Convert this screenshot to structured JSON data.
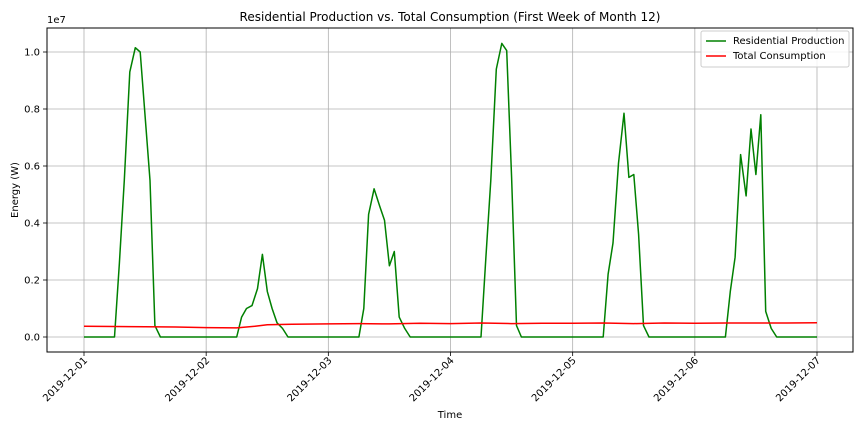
{
  "chart_data": {
    "type": "line",
    "title": "Residential Production vs. Total Consumption (First Week of Month 12)",
    "xlabel": "Time",
    "ylabel": "Energy (W)",
    "y_scale_label": "1e7",
    "xlim": [
      0,
      6
    ],
    "ylim": [
      -0.5,
      10.8
    ],
    "grid": true,
    "legend_position": "top-right",
    "x_ticks": [
      {
        "pos": 0,
        "label": "2019-12-01"
      },
      {
        "pos": 1,
        "label": "2019-12-02"
      },
      {
        "pos": 2,
        "label": "2019-12-03"
      },
      {
        "pos": 3,
        "label": "2019-12-04"
      },
      {
        "pos": 4,
        "label": "2019-12-05"
      },
      {
        "pos": 5,
        "label": "2019-12-06"
      },
      {
        "pos": 6,
        "label": "2019-12-07"
      }
    ],
    "y_ticks": [
      {
        "pos": 0,
        "label": "0.0"
      },
      {
        "pos": 2,
        "label": "0.2"
      },
      {
        "pos": 4,
        "label": "0.4"
      },
      {
        "pos": 6,
        "label": "0.6"
      },
      {
        "pos": 8,
        "label": "0.8"
      },
      {
        "pos": 10,
        "label": "1.0"
      }
    ],
    "series": [
      {
        "name": "Residential Production",
        "color": "#008000",
        "x": [
          0.0,
          0.25,
          0.29,
          0.33,
          0.375,
          0.42,
          0.46,
          0.54,
          0.58,
          0.625,
          0.67,
          1.25,
          1.29,
          1.33,
          1.375,
          1.42,
          1.46,
          1.5,
          1.54,
          1.58,
          1.625,
          1.67,
          2.25,
          2.29,
          2.33,
          2.375,
          2.42,
          2.46,
          2.5,
          2.54,
          2.58,
          2.625,
          2.67,
          3.25,
          3.29,
          3.33,
          3.375,
          3.42,
          3.46,
          3.5,
          3.54,
          3.58,
          3.625,
          3.67,
          4.25,
          4.29,
          4.33,
          4.375,
          4.42,
          4.46,
          4.5,
          4.54,
          4.58,
          4.625,
          4.67,
          5.25,
          5.29,
          5.33,
          5.375,
          5.42,
          5.46,
          5.5,
          5.54,
          5.58,
          5.625,
          5.67,
          6.0
        ],
        "values": [
          0.0,
          0.0,
          2.6,
          5.5,
          9.3,
          10.15,
          10.0,
          5.5,
          0.4,
          0.0,
          0.0,
          0.0,
          0.7,
          1.0,
          1.1,
          1.7,
          2.9,
          1.6,
          1.0,
          0.5,
          0.3,
          0.0,
          0.0,
          1.0,
          4.3,
          5.2,
          4.6,
          4.1,
          2.5,
          3.0,
          0.7,
          0.3,
          0.0,
          0.0,
          2.8,
          5.5,
          9.4,
          10.3,
          10.05,
          5.6,
          0.4,
          0.0,
          0.0,
          0.0,
          0.0,
          2.2,
          3.3,
          6.1,
          7.85,
          5.6,
          5.7,
          3.6,
          0.4,
          0.0,
          0.0,
          0.0,
          1.6,
          2.8,
          6.4,
          4.95,
          7.3,
          5.7,
          7.8,
          0.9,
          0.3,
          0.0,
          0.0
        ]
      },
      {
        "name": "Total Consumption",
        "color": "#ff0000",
        "x": [
          0.0,
          0.25,
          0.5,
          0.75,
          1.0,
          1.25,
          1.4,
          1.5,
          1.7,
          2.0,
          2.25,
          2.5,
          2.75,
          3.0,
          3.25,
          3.5,
          3.75,
          4.0,
          4.25,
          4.5,
          4.75,
          5.0,
          5.25,
          5.5,
          5.75,
          6.0
        ],
        "values": [
          0.38,
          0.37,
          0.36,
          0.35,
          0.33,
          0.32,
          0.38,
          0.43,
          0.45,
          0.46,
          0.47,
          0.46,
          0.48,
          0.47,
          0.49,
          0.47,
          0.48,
          0.48,
          0.49,
          0.47,
          0.49,
          0.48,
          0.49,
          0.49,
          0.49,
          0.5
        ]
      }
    ]
  }
}
